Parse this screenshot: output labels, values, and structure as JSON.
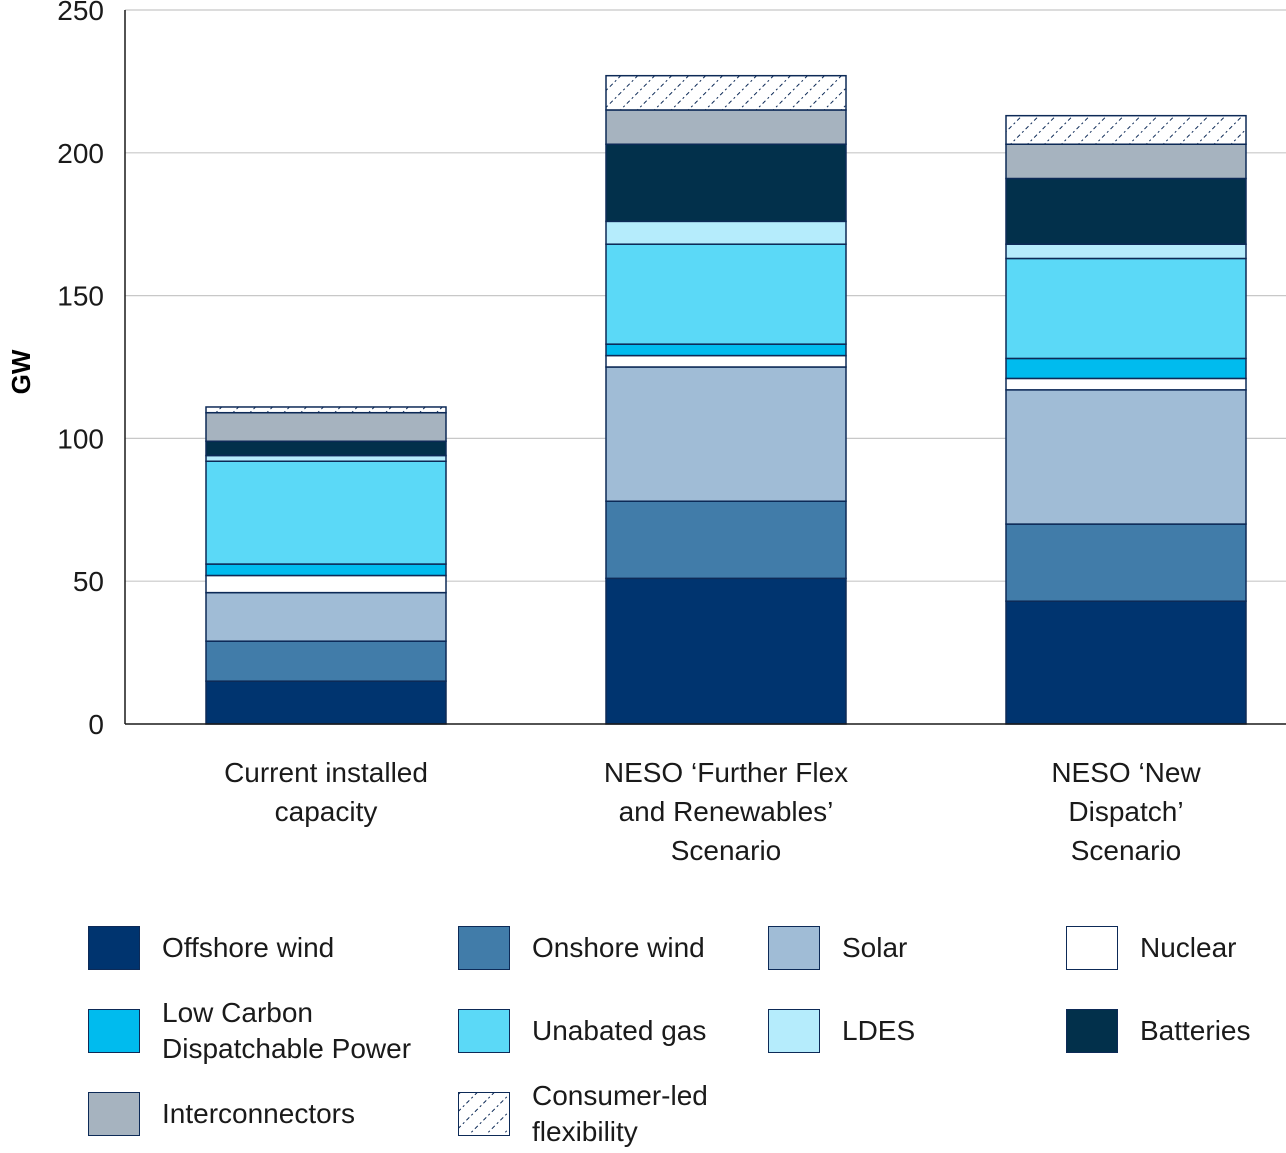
{
  "chart_data": {
    "type": "bar",
    "stacked": true,
    "ylabel": "GW",
    "ylim": [
      0,
      250
    ],
    "yticks": [
      0,
      50,
      100,
      150,
      200,
      250
    ],
    "grid": true,
    "legend_position": "bottom",
    "categories": [
      "Current installed\ncapacity",
      "NESO ‘Further Flex\nand Renewables’\nScenario",
      "NESO ‘New\nDispatch’\nScenario"
    ],
    "series": [
      {
        "name": "Offshore wind",
        "color": "#00346f",
        "values": [
          15,
          51,
          43
        ]
      },
      {
        "name": "Onshore wind",
        "color": "#417ca9",
        "values": [
          14,
          27,
          27
        ]
      },
      {
        "name": "Solar",
        "color": "#a0bcd6",
        "values": [
          17,
          47,
          47
        ]
      },
      {
        "name": "Nuclear",
        "color": "#ffffff",
        "values": [
          6,
          4,
          4
        ]
      },
      {
        "name": "Low Carbon\nDispatchable Power",
        "color": "#00bbee",
        "values": [
          4,
          4,
          7
        ]
      },
      {
        "name": "Unabated gas",
        "color": "#5bd9f7",
        "values": [
          36,
          35,
          35
        ]
      },
      {
        "name": "LDES",
        "color": "#b5ecfc",
        "values": [
          2,
          8,
          5
        ]
      },
      {
        "name": "Batteries",
        "color": "#02304b",
        "values": [
          5,
          27,
          23
        ]
      },
      {
        "name": "Interconnectors",
        "color": "#a6b3bf",
        "values": [
          10,
          12,
          12
        ]
      },
      {
        "name": "Consumer-led\nflexibility",
        "color": "pattern",
        "values": [
          2,
          12,
          10
        ]
      }
    ]
  }
}
